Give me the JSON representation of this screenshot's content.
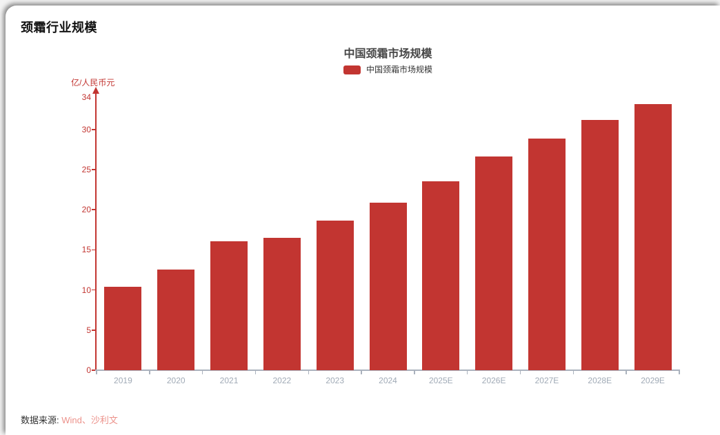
{
  "page": {
    "title": "颈霜行业规模"
  },
  "source": {
    "label": "数据来源:",
    "link_text": "Wind、沙利文"
  },
  "chart_data": {
    "type": "bar",
    "title": "中国颈霜市场规模",
    "legend_entries": [
      "中国颈霜市场规模"
    ],
    "legend_position": "top-center",
    "ylabel": "亿/人民币元",
    "xlabel": "",
    "categories": [
      "2019",
      "2020",
      "2021",
      "2022",
      "2023",
      "2024",
      "2025E",
      "2026E",
      "2027E",
      "2028E",
      "2029E"
    ],
    "values": [
      10.4,
      12.5,
      16.1,
      16.5,
      18.6,
      20.9,
      23.5,
      26.6,
      28.9,
      31.2,
      33.2
    ],
    "yticks": [
      0,
      5,
      10,
      15,
      20,
      25,
      30,
      34
    ],
    "ylim": [
      0,
      34
    ],
    "grid": "off",
    "colors": {
      "bar": "#c23531",
      "y_axis": "#c23531",
      "y_tick_label": "#c23531",
      "unit_label": "#c23531",
      "x_axis_line": "#aab2bd",
      "x_tick_label": "#a0aab6",
      "title_text": "#464646",
      "legend_text": "#333333",
      "source_text": "#333333",
      "source_link": "#ec928b"
    }
  }
}
